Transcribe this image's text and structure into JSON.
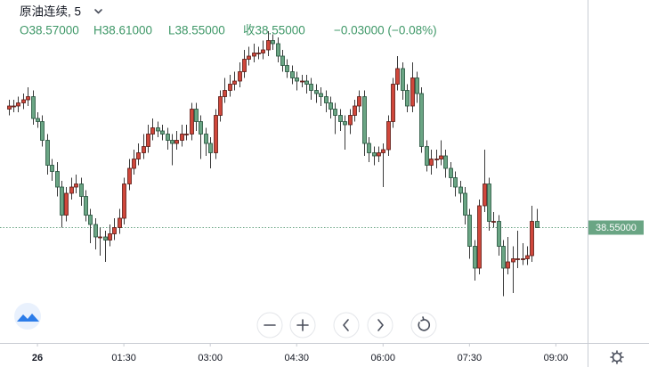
{
  "chart_data": {
    "type": "candlestick",
    "title": "原油连续, 5",
    "header_values": [
      "O38.57000",
      "H38.61000",
      "L38.55000",
      "收38.55000",
      "−0.03000 (−0.08%)"
    ],
    "x": [
      -30,
      -25,
      -20,
      -15,
      -10,
      -5,
      0,
      5,
      10,
      15,
      20,
      25,
      30,
      35,
      40,
      45,
      50,
      55,
      60,
      65,
      70,
      75,
      80,
      85,
      90,
      95,
      100,
      105,
      110,
      115,
      120,
      125,
      130,
      135,
      140,
      145,
      150,
      155,
      160,
      165,
      170,
      175,
      180,
      185,
      190,
      195,
      200,
      205,
      210,
      215,
      220,
      225,
      230,
      235,
      240,
      245,
      250,
      255,
      260,
      265,
      270,
      275,
      280,
      285,
      290,
      295,
      300,
      305,
      310,
      315,
      320,
      325,
      330,
      335,
      340,
      345,
      350,
      355,
      360,
      365,
      370,
      375,
      380,
      385,
      390,
      395,
      400,
      405,
      410,
      415,
      420,
      425,
      430,
      435,
      440,
      445,
      450,
      455,
      460,
      465,
      470,
      475,
      480,
      485,
      490,
      495,
      500,
      505,
      510,
      515,
      520
    ],
    "open": [
      38.93,
      38.94,
      38.94,
      38.95,
      38.96,
      38.97,
      38.9,
      38.89,
      38.83,
      38.75,
      38.73,
      38.68,
      38.59,
      38.66,
      38.68,
      38.69,
      38.65,
      38.59,
      38.56,
      38.52,
      38.52,
      38.51,
      38.53,
      38.55,
      38.58,
      38.69,
      38.74,
      38.77,
      38.79,
      38.81,
      38.85,
      38.87,
      38.86,
      38.85,
      38.83,
      38.82,
      38.83,
      38.85,
      38.85,
      38.93,
      38.89,
      38.85,
      38.82,
      38.79,
      38.91,
      38.97,
      38.99,
      39.01,
      39.02,
      39.05,
      39.09,
      39.1,
      39.11,
      39.11,
      39.12,
      39.15,
      39.14,
      39.1,
      39.07,
      39.05,
      39.03,
      39.02,
      39.02,
      39.01,
      38.99,
      38.98,
      38.97,
      38.95,
      38.93,
      38.91,
      38.89,
      38.88,
      38.91,
      38.94,
      38.97,
      38.82,
      38.79,
      38.78,
      38.79,
      38.8,
      38.89,
      39.01,
      39.06,
      38.99,
      38.94,
      39.03,
      38.98,
      38.81,
      38.75,
      38.77,
      38.77,
      38.78,
      38.74,
      38.71,
      38.68,
      38.66,
      38.59,
      38.49,
      38.42,
      38.62,
      38.69,
      38.57,
      38.57,
      38.49,
      38.42,
      38.44,
      38.45,
      38.45,
      38.45,
      38.46,
      38.57
    ],
    "high": [
      38.96,
      38.96,
      38.97,
      38.98,
      39.0,
      38.99,
      38.92,
      38.91,
      38.85,
      38.77,
      38.76,
      38.7,
      38.68,
      38.71,
      38.72,
      38.71,
      38.67,
      38.61,
      38.58,
      38.55,
      38.54,
      38.56,
      38.58,
      38.61,
      38.71,
      38.77,
      38.8,
      38.82,
      38.85,
      38.88,
      38.9,
      38.89,
      38.88,
      38.87,
      38.85,
      38.86,
      38.88,
      38.88,
      38.95,
      38.95,
      38.91,
      38.87,
      38.84,
      38.93,
      38.99,
      39.03,
      39.04,
      39.05,
      39.08,
      39.12,
      39.13,
      39.14,
      39.13,
      39.15,
      39.18,
      39.17,
      39.16,
      39.12,
      39.09,
      39.07,
      39.05,
      39.04,
      39.04,
      39.03,
      39.01,
      39.0,
      38.99,
      38.97,
      38.95,
      38.93,
      38.91,
      38.93,
      38.96,
      38.99,
      38.99,
      38.84,
      38.81,
      38.81,
      38.82,
      38.91,
      39.03,
      39.1,
      39.08,
      39.01,
      39.08,
      39.05,
      39.0,
      38.83,
      38.8,
      38.8,
      38.83,
      38.8,
      38.76,
      38.73,
      38.7,
      38.68,
      38.61,
      38.51,
      38.64,
      38.8,
      38.71,
      38.6,
      38.59,
      38.51,
      38.52,
      38.49,
      38.54,
      38.5,
      38.49,
      38.62,
      38.61
    ],
    "low": [
      38.91,
      38.92,
      38.92,
      38.93,
      38.94,
      38.88,
      38.87,
      38.81,
      38.72,
      38.7,
      38.65,
      38.55,
      38.57,
      38.64,
      38.66,
      38.62,
      38.57,
      38.5,
      38.48,
      38.46,
      38.44,
      38.49,
      38.51,
      38.53,
      38.56,
      38.67,
      38.72,
      38.75,
      38.77,
      38.79,
      38.83,
      38.84,
      38.83,
      38.8,
      38.75,
      38.8,
      38.81,
      38.83,
      38.83,
      38.86,
      38.77,
      38.78,
      38.74,
      38.77,
      38.89,
      38.95,
      38.97,
      38.99,
      39.0,
      39.03,
      39.07,
      39.08,
      39.09,
      39.09,
      39.1,
      39.12,
      39.08,
      39.05,
      39.03,
      39.01,
      38.99,
      39.0,
      38.98,
      38.96,
      38.95,
      38.94,
      38.92,
      38.9,
      38.85,
      38.86,
      38.8,
      38.85,
      38.89,
      38.92,
      38.78,
      38.76,
      38.75,
      38.76,
      38.68,
      38.78,
      38.87,
      38.99,
      38.96,
      38.92,
      38.92,
      38.95,
      38.79,
      38.73,
      38.72,
      38.74,
      38.75,
      38.71,
      38.68,
      38.65,
      38.63,
      38.56,
      38.45,
      38.38,
      38.4,
      38.6,
      38.54,
      38.55,
      38.46,
      38.33,
      38.4,
      38.34,
      38.42,
      38.43,
      38.43,
      38.44,
      38.55
    ],
    "close": [
      38.94,
      38.94,
      38.95,
      38.96,
      38.97,
      38.9,
      38.89,
      38.83,
      38.75,
      38.73,
      38.68,
      38.59,
      38.66,
      38.68,
      38.69,
      38.65,
      38.59,
      38.56,
      38.52,
      38.52,
      38.51,
      38.53,
      38.55,
      38.58,
      38.69,
      38.74,
      38.77,
      38.79,
      38.81,
      38.85,
      38.87,
      38.86,
      38.85,
      38.83,
      38.82,
      38.83,
      38.85,
      38.85,
      38.93,
      38.89,
      38.85,
      38.82,
      38.79,
      38.91,
      38.97,
      38.99,
      39.01,
      39.02,
      39.05,
      39.09,
      39.1,
      39.11,
      39.11,
      39.12,
      39.15,
      39.14,
      39.1,
      39.07,
      39.05,
      39.03,
      39.02,
      39.02,
      39.01,
      38.99,
      38.98,
      38.97,
      38.95,
      38.93,
      38.91,
      38.89,
      38.88,
      38.91,
      38.94,
      38.97,
      38.82,
      38.79,
      38.78,
      38.79,
      38.8,
      38.89,
      39.01,
      39.06,
      38.99,
      38.94,
      39.03,
      38.98,
      38.81,
      38.75,
      38.77,
      38.77,
      38.78,
      38.74,
      38.71,
      38.68,
      38.66,
      38.59,
      38.49,
      38.42,
      38.62,
      38.69,
      38.57,
      38.57,
      38.49,
      38.42,
      38.44,
      38.45,
      38.45,
      38.45,
      38.46,
      38.57,
      38.55
    ],
    "xlim": [
      -39,
      573
    ],
    "xticks": [
      {
        "value": 0,
        "label": "26"
      },
      {
        "value": 90,
        "label": "01:30"
      },
      {
        "value": 180,
        "label": "03:00"
      },
      {
        "value": 270,
        "label": "04:30"
      },
      {
        "value": 360,
        "label": "06:00"
      },
      {
        "value": 450,
        "label": "07:30"
      },
      {
        "value": 540,
        "label": "09:00"
      }
    ],
    "ylim": [
      38.18,
      39.28
    ],
    "last_price": {
      "value": 38.55,
      "label": "38.55000"
    },
    "up_color": "#d0473b",
    "down_color": "#6aa584"
  }
}
